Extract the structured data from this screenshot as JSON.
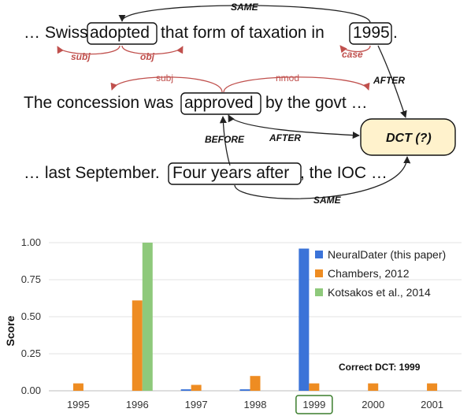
{
  "colors": {
    "dep_edge": "#c0504d",
    "temporal_edge": "#222222",
    "dct_fill": "#fff2cc",
    "correct_box": "#3a7d2c"
  },
  "diagram": {
    "s1": {
      "pre": "… Swiss",
      "w1": "adopted",
      "mid": "that form of taxation in",
      "w2": "1995",
      "post": "."
    },
    "s2": {
      "pre": "The concession was",
      "w1": "approved",
      "post": "by the govt …"
    },
    "s3": {
      "pre": "… last September.",
      "w1": "Four years after",
      "post": ", the IOC …"
    },
    "dct": "DCT (?)",
    "edges": {
      "same_top": "SAME",
      "subj_italic": "subj",
      "obj": "obj",
      "case": "case",
      "subj": "subj",
      "nmod": "nmod",
      "after_1995": "AFTER",
      "after_approved": "AFTER",
      "before": "BEFORE",
      "same_bottom": "SAME"
    }
  },
  "chart_data": {
    "type": "bar",
    "categories": [
      "1995",
      "1996",
      "1997",
      "1998",
      "1999",
      "2000",
      "2001"
    ],
    "series": [
      {
        "name": "NeuralDater (this paper)",
        "color": "#3b73d8",
        "values": [
          0.0,
          0.0,
          0.01,
          0.01,
          0.96,
          0.0,
          0.0
        ]
      },
      {
        "name": "Chambers, 2012",
        "color": "#ee8c22",
        "values": [
          0.05,
          0.61,
          0.04,
          0.1,
          0.05,
          0.05,
          0.05
        ]
      },
      {
        "name": "Kotsakos et al., 2014",
        "color": "#8ec97b",
        "values": [
          0.0,
          1.0,
          0.0,
          0.0,
          0.0,
          0.0,
          0.0
        ]
      }
    ],
    "xlabel": "",
    "ylabel": "Score",
    "ylim": [
      0,
      1.0
    ],
    "yticks": [
      "0.00",
      "0.25",
      "0.50",
      "0.75",
      "1.00"
    ],
    "grid": true,
    "legend": "top-right",
    "annotation": "Correct DCT: 1999",
    "highlight_category": "1999"
  }
}
